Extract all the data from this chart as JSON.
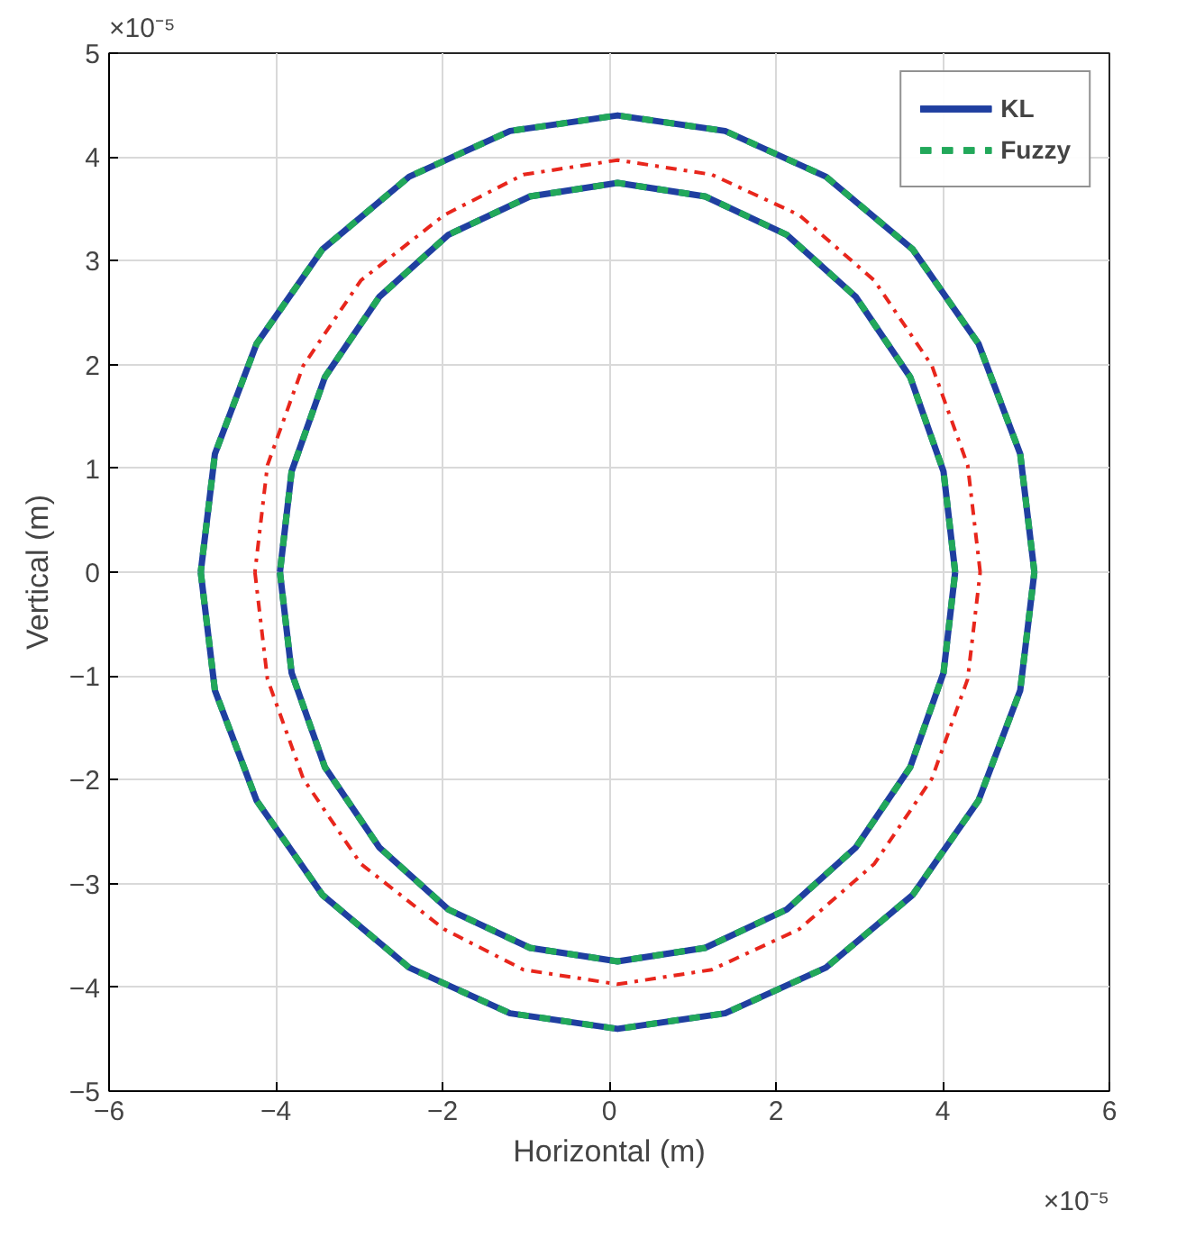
{
  "chart_data": {
    "type": "line",
    "xlabel": "Horizontal (m)",
    "ylabel": "Vertical (m)",
    "annotations": [
      "×10⁻⁵",
      "×10⁻⁵"
    ],
    "xlim": [
      -6,
      6
    ],
    "xticks": [
      -6,
      -4,
      -2,
      0,
      2,
      4,
      6
    ],
    "ylim": [
      -5,
      5
    ],
    "yticks": [
      -5,
      -4,
      -3,
      -2,
      -1,
      0,
      1,
      2,
      3,
      4,
      5
    ],
    "grid": true,
    "legend": "top right",
    "marker": "none",
    "series": [
      {
        "name": "KL",
        "color": "#1f3fa0",
        "line_style": "solid",
        "x": [
          5.1,
          4.93,
          4.43,
          3.64,
          2.6,
          1.39,
          0.1,
          -1.19,
          -2.4,
          -3.44,
          -4.23,
          -4.73,
          -4.9,
          null,
          -4.9,
          -4.73,
          -4.23,
          -3.44,
          -2.4,
          -1.19,
          0.1,
          1.39,
          2.6,
          3.64,
          4.43,
          4.93,
          5.1,
          null,
          4.15,
          4.01,
          3.61,
          2.96,
          2.13,
          1.15,
          0.1,
          -0.95,
          -1.93,
          -2.76,
          -3.41,
          -3.81,
          -3.95,
          null,
          -3.95,
          -3.81,
          -3.41,
          -2.76,
          -1.93,
          -0.95,
          0.1,
          1.15,
          2.13,
          2.96,
          3.61,
          4.01,
          4.15
        ],
        "values": [
          0,
          1.14,
          2.2,
          3.11,
          3.81,
          4.25,
          4.4,
          4.25,
          3.81,
          3.11,
          2.2,
          1.14,
          0,
          null,
          0,
          -1.14,
          -2.2,
          -3.11,
          -3.81,
          -4.25,
          -4.4,
          -4.25,
          -3.81,
          -3.11,
          -2.2,
          -1.14,
          0,
          null,
          0,
          0.97,
          1.88,
          2.65,
          3.25,
          3.62,
          3.75,
          3.62,
          3.25,
          2.65,
          1.88,
          0.97,
          0,
          null,
          0,
          -0.97,
          -1.88,
          -2.65,
          -3.25,
          -3.62,
          -3.75,
          -3.62,
          -3.25,
          -2.65,
          -1.88,
          -0.97,
          0
        ]
      },
      {
        "name": "Fuzzy",
        "color": "#22a85a",
        "line_style": "dashed",
        "x": [
          5.1,
          4.93,
          4.43,
          3.64,
          2.6,
          1.39,
          0.1,
          -1.19,
          -2.4,
          -3.44,
          -4.23,
          -4.73,
          -4.9,
          null,
          -4.9,
          -4.73,
          -4.23,
          -3.44,
          -2.4,
          -1.19,
          0.1,
          1.39,
          2.6,
          3.64,
          4.43,
          4.93,
          5.1,
          null,
          4.15,
          4.01,
          3.61,
          2.96,
          2.13,
          1.15,
          0.1,
          -0.95,
          -1.93,
          -2.76,
          -3.41,
          -3.81,
          -3.95,
          null,
          -3.95,
          -3.81,
          -3.41,
          -2.76,
          -1.93,
          -0.95,
          0.1,
          1.15,
          2.13,
          2.96,
          3.61,
          4.01,
          4.15
        ],
        "values": [
          0,
          1.14,
          2.2,
          3.11,
          3.81,
          4.25,
          4.4,
          4.25,
          3.81,
          3.11,
          2.2,
          1.14,
          0,
          null,
          0,
          -1.14,
          -2.2,
          -3.11,
          -3.81,
          -4.25,
          -4.4,
          -4.25,
          -3.81,
          -3.11,
          -2.2,
          -1.14,
          0,
          null,
          0,
          0.97,
          1.88,
          2.65,
          3.25,
          3.62,
          3.75,
          3.62,
          3.25,
          2.65,
          1.88,
          0.97,
          0,
          null,
          0,
          -0.97,
          -1.88,
          -2.65,
          -3.25,
          -3.62,
          -3.75,
          -3.62,
          -3.25,
          -2.65,
          -1.88,
          -0.97,
          0
        ]
      },
      {
        "color": "#e8261c",
        "line_style": "dashdot",
        "x": [
          4.45,
          4.3,
          3.87,
          3.18,
          2.28,
          1.23,
          0.1,
          -1.03,
          -1.98,
          -2.98,
          -3.67,
          -4.1,
          -4.25,
          null,
          -4.25,
          -4.1,
          -3.67,
          -2.98,
          -1.98,
          -1.03,
          0.1,
          1.23,
          2.28,
          3.18,
          3.87,
          4.3,
          4.45
        ],
        "values": [
          0,
          1.03,
          1.99,
          2.81,
          3.44,
          3.83,
          3.97,
          3.83,
          3.44,
          2.81,
          1.99,
          1.03,
          0,
          null,
          0,
          -1.03,
          -1.99,
          -2.81,
          -3.44,
          -3.83,
          -3.97,
          -3.83,
          -3.44,
          -2.81,
          -1.99,
          -1.03,
          0
        ]
      }
    ]
  }
}
